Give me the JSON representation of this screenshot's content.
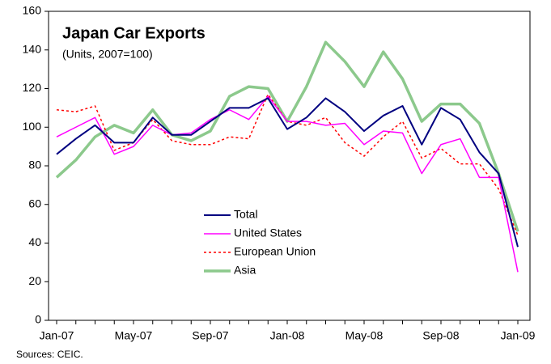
{
  "chart_data": {
    "type": "line",
    "title": "Japan Car Exports",
    "subtitle": "(Units, 2007=100)",
    "note": "Sources: CEIC.",
    "categories": [
      "Jan-07",
      null,
      null,
      null,
      "May-07",
      null,
      null,
      null,
      "Sep-07",
      null,
      null,
      null,
      "Jan-08",
      null,
      null,
      null,
      "May-08",
      null,
      null,
      null,
      "Sep-08",
      null,
      null,
      null,
      "Jan-09"
    ],
    "series": [
      {
        "name": "Total",
        "color": "#000080",
        "line_width": 2,
        "style": "solid",
        "values": [
          86,
          94,
          101,
          92,
          92,
          105,
          96,
          96,
          103,
          110,
          110,
          115,
          99,
          105,
          115,
          108,
          98,
          106,
          111,
          91,
          110,
          104,
          87,
          76,
          38
        ]
      },
      {
        "name": "United States",
        "color": "#ff00ff",
        "line_width": 1.5,
        "style": "solid",
        "values": [
          95,
          100,
          105,
          86,
          90,
          101,
          96,
          97,
          104,
          109,
          104,
          116,
          103,
          103,
          101,
          102,
          91,
          98,
          97,
          76,
          91,
          94,
          74,
          74,
          25
        ]
      },
      {
        "name": "European Union",
        "color": "#ff0000",
        "line_width": 1.5,
        "style": "dotted",
        "values": [
          109,
          108,
          111,
          88,
          92,
          104,
          93,
          91,
          91,
          95,
          94,
          117,
          103,
          101,
          105,
          92,
          85,
          95,
          103,
          84,
          89,
          81,
          81,
          68,
          44
        ]
      },
      {
        "name": "Asia",
        "color": "#8cc98c",
        "line_width": 3.5,
        "style": "solid",
        "values": [
          74,
          83,
          95,
          101,
          97,
          109,
          96,
          93,
          98,
          116,
          121,
          120,
          103,
          121,
          144,
          134,
          121,
          139,
          125,
          103,
          112,
          112,
          102,
          76,
          46
        ]
      }
    ],
    "ylim": [
      0,
      160
    ],
    "yticks": [
      0,
      20,
      40,
      60,
      80,
      100,
      120,
      140,
      160
    ],
    "grid": false,
    "legend": "center"
  }
}
